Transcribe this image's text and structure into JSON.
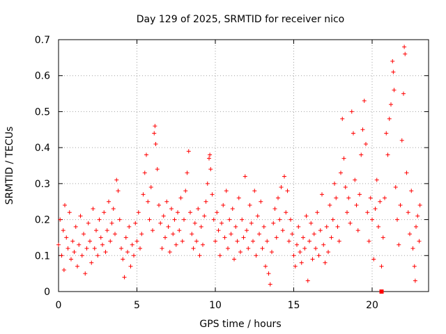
{
  "chart_data": {
    "type": "scatter",
    "title": "Day 129 of 2025, SRMTID for receiver nico",
    "xlabel": "GPS time / hours",
    "ylabel": "SRMTID / TECUs",
    "xlim": [
      0,
      23.6
    ],
    "ylim": [
      0,
      0.7
    ],
    "xticks": [
      0,
      5,
      10,
      15,
      20
    ],
    "xtick_labels": [
      "0",
      "5",
      "10",
      "15",
      "20"
    ],
    "yticks": [
      0,
      0.1,
      0.2,
      0.3,
      0.4,
      0.5,
      0.6,
      0.7
    ],
    "ytick_labels": [
      "0",
      "0.1",
      "0.2",
      "0.3",
      "0.4",
      "0.5",
      "0.6",
      "0.7"
    ],
    "grid": true,
    "marker": "plus",
    "color": "#ff0000",
    "outlier_markers": [
      {
        "x": 20.6,
        "y": 0.0
      }
    ],
    "series": [
      {
        "name": "SRMTID",
        "points": [
          [
            0.0,
            0.13
          ],
          [
            0.1,
            0.2
          ],
          [
            0.2,
            0.1
          ],
          [
            0.3,
            0.17
          ],
          [
            0.35,
            0.06
          ],
          [
            0.4,
            0.24
          ],
          [
            0.5,
            0.15
          ],
          [
            0.6,
            0.12
          ],
          [
            0.7,
            0.22
          ],
          [
            0.8,
            0.09
          ],
          [
            0.9,
            0.14
          ],
          [
            1.0,
            0.11
          ],
          [
            1.1,
            0.18
          ],
          [
            1.2,
            0.07
          ],
          [
            1.3,
            0.13
          ],
          [
            1.4,
            0.21
          ],
          [
            1.5,
            0.1
          ],
          [
            1.6,
            0.16
          ],
          [
            1.7,
            0.05
          ],
          [
            1.8,
            0.12
          ],
          [
            1.9,
            0.19
          ],
          [
            2.0,
            0.14
          ],
          [
            2.1,
            0.08
          ],
          [
            2.2,
            0.23
          ],
          [
            2.3,
            0.12
          ],
          [
            2.4,
            0.17
          ],
          [
            2.5,
            0.1
          ],
          [
            2.6,
            0.2
          ],
          [
            2.7,
            0.15
          ],
          [
            2.8,
            0.13
          ],
          [
            2.9,
            0.22
          ],
          [
            3.0,
            0.11
          ],
          [
            3.1,
            0.17
          ],
          [
            3.2,
            0.25
          ],
          [
            3.3,
            0.14
          ],
          [
            3.4,
            0.19
          ],
          [
            3.5,
            0.23
          ],
          [
            3.6,
            0.16
          ],
          [
            3.7,
            0.31
          ],
          [
            3.8,
            0.28
          ],
          [
            3.9,
            0.2
          ],
          [
            4.0,
            0.12
          ],
          [
            4.1,
            0.09
          ],
          [
            4.2,
            0.04
          ],
          [
            4.3,
            0.15
          ],
          [
            4.4,
            0.11
          ],
          [
            4.5,
            0.18
          ],
          [
            4.6,
            0.07
          ],
          [
            4.7,
            0.13
          ],
          [
            4.8,
            0.1
          ],
          [
            4.9,
            0.19
          ],
          [
            5.0,
            0.14
          ],
          [
            5.1,
            0.22
          ],
          [
            5.2,
            0.12
          ],
          [
            5.3,
            0.16
          ],
          [
            5.4,
            0.27
          ],
          [
            5.5,
            0.33
          ],
          [
            5.6,
            0.38
          ],
          [
            5.7,
            0.25
          ],
          [
            5.8,
            0.2
          ],
          [
            5.9,
            0.29
          ],
          [
            6.0,
            0.17
          ],
          [
            6.1,
            0.44
          ],
          [
            6.15,
            0.46
          ],
          [
            6.2,
            0.41
          ],
          [
            6.3,
            0.34
          ],
          [
            6.4,
            0.24
          ],
          [
            6.5,
            0.19
          ],
          [
            6.6,
            0.12
          ],
          [
            6.7,
            0.21
          ],
          [
            6.8,
            0.15
          ],
          [
            6.9,
            0.25
          ],
          [
            7.0,
            0.18
          ],
          [
            7.1,
            0.11
          ],
          [
            7.2,
            0.23
          ],
          [
            7.3,
            0.16
          ],
          [
            7.4,
            0.2
          ],
          [
            7.5,
            0.13
          ],
          [
            7.6,
            0.22
          ],
          [
            7.7,
            0.17
          ],
          [
            7.8,
            0.26
          ],
          [
            7.9,
            0.14
          ],
          [
            8.0,
            0.2
          ],
          [
            8.1,
            0.28
          ],
          [
            8.2,
            0.33
          ],
          [
            8.3,
            0.39
          ],
          [
            8.4,
            0.22
          ],
          [
            8.5,
            0.16
          ],
          [
            8.6,
            0.12
          ],
          [
            8.7,
            0.19
          ],
          [
            8.8,
            0.14
          ],
          [
            8.9,
            0.23
          ],
          [
            9.0,
            0.1
          ],
          [
            9.1,
            0.18
          ],
          [
            9.2,
            0.13
          ],
          [
            9.3,
            0.21
          ],
          [
            9.4,
            0.25
          ],
          [
            9.5,
            0.3
          ],
          [
            9.6,
            0.37
          ],
          [
            9.65,
            0.38
          ],
          [
            9.7,
            0.34
          ],
          [
            9.8,
            0.27
          ],
          [
            9.9,
            0.2
          ],
          [
            10.0,
            0.14
          ],
          [
            10.1,
            0.22
          ],
          [
            10.2,
            0.17
          ],
          [
            10.3,
            0.1
          ],
          [
            10.4,
            0.19
          ],
          [
            10.5,
            0.24
          ],
          [
            10.6,
            0.15
          ],
          [
            10.7,
            0.28
          ],
          [
            10.8,
            0.12
          ],
          [
            10.9,
            0.2
          ],
          [
            11.0,
            0.16
          ],
          [
            11.1,
            0.23
          ],
          [
            11.2,
            0.09
          ],
          [
            11.3,
            0.18
          ],
          [
            11.4,
            0.14
          ],
          [
            11.5,
            0.26
          ],
          [
            11.6,
            0.11
          ],
          [
            11.7,
            0.2
          ],
          [
            11.8,
            0.15
          ],
          [
            11.9,
            0.32
          ],
          [
            12.0,
            0.17
          ],
          [
            12.1,
            0.12
          ],
          [
            12.2,
            0.24
          ],
          [
            12.3,
            0.19
          ],
          [
            12.4,
            0.14
          ],
          [
            12.5,
            0.28
          ],
          [
            12.6,
            0.1
          ],
          [
            12.7,
            0.21
          ],
          [
            12.8,
            0.16
          ],
          [
            12.9,
            0.25
          ],
          [
            13.0,
            0.12
          ],
          [
            13.1,
            0.18
          ],
          [
            13.2,
            0.07
          ],
          [
            13.3,
            0.14
          ],
          [
            13.4,
            0.05
          ],
          [
            13.5,
            0.02
          ],
          [
            13.6,
            0.11
          ],
          [
            13.7,
            0.19
          ],
          [
            13.8,
            0.23
          ],
          [
            13.9,
            0.15
          ],
          [
            14.0,
            0.26
          ],
          [
            14.1,
            0.2
          ],
          [
            14.2,
            0.29
          ],
          [
            14.3,
            0.17
          ],
          [
            14.4,
            0.32
          ],
          [
            14.5,
            0.22
          ],
          [
            14.6,
            0.28
          ],
          [
            14.7,
            0.14
          ],
          [
            14.8,
            0.2
          ],
          [
            14.9,
            0.16
          ],
          [
            15.0,
            0.1
          ],
          [
            15.1,
            0.07
          ],
          [
            15.2,
            0.13
          ],
          [
            15.3,
            0.18
          ],
          [
            15.4,
            0.11
          ],
          [
            15.5,
            0.08
          ],
          [
            15.6,
            0.15
          ],
          [
            15.7,
            0.12
          ],
          [
            15.8,
            0.21
          ],
          [
            15.9,
            0.03
          ],
          [
            16.0,
            0.14
          ],
          [
            16.1,
            0.19
          ],
          [
            16.2,
            0.09
          ],
          [
            16.3,
            0.16
          ],
          [
            16.4,
            0.12
          ],
          [
            16.5,
            0.22
          ],
          [
            16.6,
            0.1
          ],
          [
            16.7,
            0.17
          ],
          [
            16.8,
            0.27
          ],
          [
            16.9,
            0.13
          ],
          [
            17.0,
            0.08
          ],
          [
            17.1,
            0.18
          ],
          [
            17.2,
            0.11
          ],
          [
            17.3,
            0.24
          ],
          [
            17.4,
            0.15
          ],
          [
            17.5,
            0.2
          ],
          [
            17.6,
            0.3
          ],
          [
            17.7,
            0.26
          ],
          [
            17.8,
            0.18
          ],
          [
            17.9,
            0.14
          ],
          [
            18.0,
            0.33
          ],
          [
            18.1,
            0.48
          ],
          [
            18.2,
            0.37
          ],
          [
            18.3,
            0.29
          ],
          [
            18.4,
            0.22
          ],
          [
            18.5,
            0.26
          ],
          [
            18.6,
            0.19
          ],
          [
            18.7,
            0.5
          ],
          [
            18.8,
            0.44
          ],
          [
            18.9,
            0.31
          ],
          [
            19.0,
            0.24
          ],
          [
            19.1,
            0.17
          ],
          [
            19.2,
            0.27
          ],
          [
            19.3,
            0.38
          ],
          [
            19.4,
            0.45
          ],
          [
            19.5,
            0.53
          ],
          [
            19.6,
            0.41
          ],
          [
            19.7,
            0.22
          ],
          [
            19.8,
            0.14
          ],
          [
            19.9,
            0.26
          ],
          [
            20.0,
            0.2
          ],
          [
            20.1,
            0.09
          ],
          [
            20.2,
            0.23
          ],
          [
            20.3,
            0.31
          ],
          [
            20.4,
            0.18
          ],
          [
            20.5,
            0.25
          ],
          [
            20.6,
            0.07
          ],
          [
            20.7,
            0.15
          ],
          [
            20.8,
            0.26
          ],
          [
            20.9,
            0.44
          ],
          [
            21.0,
            0.38
          ],
          [
            21.1,
            0.48
          ],
          [
            21.2,
            0.52
          ],
          [
            21.3,
            0.64
          ],
          [
            21.35,
            0.61
          ],
          [
            21.4,
            0.56
          ],
          [
            21.5,
            0.29
          ],
          [
            21.6,
            0.2
          ],
          [
            21.7,
            0.13
          ],
          [
            21.8,
            0.24
          ],
          [
            21.9,
            0.42
          ],
          [
            22.0,
            0.55
          ],
          [
            22.05,
            0.68
          ],
          [
            22.1,
            0.66
          ],
          [
            22.2,
            0.33
          ],
          [
            22.3,
            0.22
          ],
          [
            22.4,
            0.16
          ],
          [
            22.5,
            0.28
          ],
          [
            22.6,
            0.12
          ],
          [
            22.7,
            0.07
          ],
          [
            22.75,
            0.03
          ],
          [
            22.8,
            0.18
          ],
          [
            22.9,
            0.21
          ],
          [
            23.0,
            0.14
          ],
          [
            23.05,
            0.24
          ]
        ]
      }
    ]
  }
}
